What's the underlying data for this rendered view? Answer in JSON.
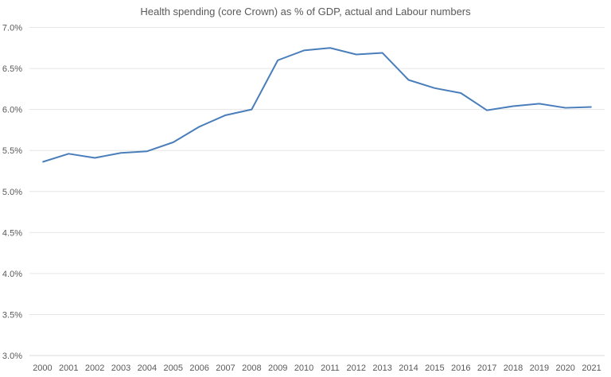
{
  "chart_data": {
    "type": "line",
    "title": "Health spending (core Crown) as % of GDP, actual and Labour numbers",
    "xlabel": "",
    "ylabel": "",
    "categories": [
      "2000",
      "2001",
      "2002",
      "2003",
      "2004",
      "2005",
      "2006",
      "2007",
      "2008",
      "2009",
      "2010",
      "2011",
      "2012",
      "2013",
      "2014",
      "2015",
      "2016",
      "2017",
      "2018",
      "2019",
      "2020",
      "2021"
    ],
    "series": [
      {
        "values": [
          5.36,
          5.46,
          5.41,
          5.47,
          5.49,
          5.6,
          5.79,
          5.93,
          6.0,
          6.6,
          6.72,
          6.75,
          6.67,
          6.69,
          6.36,
          6.26,
          6.2,
          5.99,
          6.04,
          6.07,
          6.02,
          6.03
        ],
        "color": "#4a7ebb"
      }
    ],
    "ylim": [
      3.0,
      7.0
    ],
    "yticks": [
      "3.0%",
      "3.5%",
      "4.0%",
      "4.5%",
      "5.0%",
      "5.5%",
      "6.0%",
      "6.5%",
      "7.0%"
    ],
    "grid": true,
    "legend": "none"
  }
}
